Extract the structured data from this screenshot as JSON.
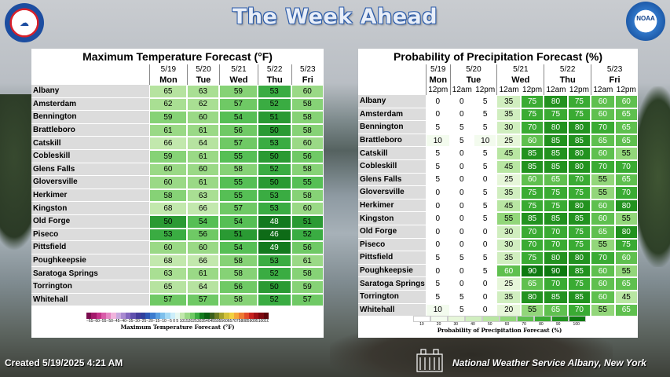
{
  "title": "The Week Ahead",
  "footer": {
    "created": "Created   5/19/2025 4:21 AM",
    "office": "National Weather Service Albany, New York"
  },
  "logos": {
    "left": "NWS",
    "right": "NOAA"
  },
  "temp": {
    "title": "Maximum Temperature Forecast (°F)",
    "dates": [
      "5/19",
      "5/20",
      "5/21",
      "5/22",
      "5/23"
    ],
    "days": [
      "Mon",
      "Tue",
      "Wed",
      "Thu",
      "Fri"
    ],
    "legend_label": "Maximum Temperature Forecast (°F)",
    "legend_ticks": "−65−60−55−50−45−40−35−30−25−20−15−10 −5 0  5 10152025303540455055606570758085909510010511011512012513013514",
    "rows": [
      {
        "name": "Albany",
        "v": [
          65,
          63,
          59,
          53,
          60
        ]
      },
      {
        "name": "Amsterdam",
        "v": [
          62,
          62,
          57,
          52,
          58
        ]
      },
      {
        "name": "Bennington",
        "v": [
          59,
          60,
          54,
          51,
          58
        ]
      },
      {
        "name": "Brattleboro",
        "v": [
          61,
          61,
          56,
          50,
          58
        ]
      },
      {
        "name": "Catskill",
        "v": [
          66,
          64,
          57,
          53,
          60
        ]
      },
      {
        "name": "Cobleskill",
        "v": [
          59,
          61,
          55,
          50,
          56
        ]
      },
      {
        "name": "Glens Falls",
        "v": [
          60,
          60,
          58,
          52,
          58
        ]
      },
      {
        "name": "Gloversville",
        "v": [
          60,
          61,
          55,
          50,
          55
        ]
      },
      {
        "name": "Herkimer",
        "v": [
          58,
          63,
          55,
          53,
          58
        ]
      },
      {
        "name": "Kingston",
        "v": [
          68,
          66,
          57,
          53,
          60
        ]
      },
      {
        "name": "Old Forge",
        "v": [
          50,
          54,
          54,
          48,
          51
        ]
      },
      {
        "name": "Piseco",
        "v": [
          53,
          56,
          51,
          46,
          52
        ]
      },
      {
        "name": "Pittsfield",
        "v": [
          60,
          60,
          54,
          49,
          56
        ]
      },
      {
        "name": "Poughkeepsie",
        "v": [
          68,
          66,
          58,
          53,
          61
        ]
      },
      {
        "name": "Saratoga Springs",
        "v": [
          63,
          61,
          58,
          52,
          58
        ]
      },
      {
        "name": "Torrington",
        "v": [
          65,
          64,
          56,
          50,
          59
        ]
      },
      {
        "name": "Whitehall",
        "v": [
          57,
          57,
          58,
          52,
          57
        ]
      }
    ]
  },
  "pop": {
    "title": "Probability of Precipitation Forecast (%)",
    "dates": [
      "5/19",
      "5/20",
      "5/21",
      "5/22",
      "5/23"
    ],
    "days": [
      "Mon",
      "Tue",
      "Wed",
      "Thu",
      "Fri"
    ],
    "periods": [
      "12pm",
      "12am",
      "12pm",
      "12am",
      "12pm",
      "12am",
      "12pm",
      "12am",
      "12pm"
    ],
    "legend_label": "Probability of Precipitation Forecast (%)",
    "legend_ticks": [
      "10",
      "20",
      "30",
      "40",
      "50",
      "60",
      "70",
      "80",
      "90",
      "100"
    ],
    "rows": [
      {
        "name": "Albany",
        "v": [
          0,
          0,
          5,
          35,
          75,
          80,
          75,
          60,
          60
        ]
      },
      {
        "name": "Amsterdam",
        "v": [
          0,
          0,
          5,
          35,
          75,
          75,
          75,
          60,
          65
        ]
      },
      {
        "name": "Bennington",
        "v": [
          5,
          5,
          5,
          30,
          70,
          80,
          80,
          70,
          65
        ]
      },
      {
        "name": "Brattleboro",
        "v": [
          10,
          5,
          10,
          25,
          60,
          85,
          85,
          65,
          65
        ]
      },
      {
        "name": "Catskill",
        "v": [
          5,
          0,
          5,
          45,
          85,
          85,
          80,
          60,
          55
        ]
      },
      {
        "name": "Cobleskill",
        "v": [
          5,
          0,
          5,
          45,
          85,
          85,
          80,
          70,
          70
        ]
      },
      {
        "name": "Glens Falls",
        "v": [
          5,
          0,
          0,
          25,
          60,
          65,
          70,
          55,
          65
        ]
      },
      {
        "name": "Gloversville",
        "v": [
          0,
          0,
          5,
          35,
          75,
          75,
          75,
          55,
          70
        ]
      },
      {
        "name": "Herkimer",
        "v": [
          0,
          0,
          5,
          45,
          75,
          75,
          80,
          60,
          80
        ]
      },
      {
        "name": "Kingston",
        "v": [
          0,
          0,
          5,
          55,
          85,
          85,
          85,
          60,
          55
        ]
      },
      {
        "name": "Old Forge",
        "v": [
          0,
          0,
          0,
          30,
          70,
          70,
          75,
          65,
          80
        ]
      },
      {
        "name": "Piseco",
        "v": [
          0,
          0,
          0,
          30,
          70,
          70,
          75,
          55,
          75
        ]
      },
      {
        "name": "Pittsfield",
        "v": [
          5,
          5,
          5,
          35,
          75,
          80,
          80,
          70,
          60
        ]
      },
      {
        "name": "Poughkeepsie",
        "v": [
          0,
          0,
          5,
          60,
          90,
          90,
          85,
          60,
          55
        ]
      },
      {
        "name": "Saratoga Springs",
        "v": [
          5,
          0,
          0,
          25,
          65,
          70,
          75,
          60,
          65
        ]
      },
      {
        "name": "Torrington",
        "v": [
          5,
          5,
          0,
          35,
          80,
          85,
          85,
          60,
          45
        ]
      },
      {
        "name": "Whitehall",
        "v": [
          10,
          5,
          0,
          20,
          55,
          65,
          70,
          55,
          65
        ]
      }
    ]
  }
}
